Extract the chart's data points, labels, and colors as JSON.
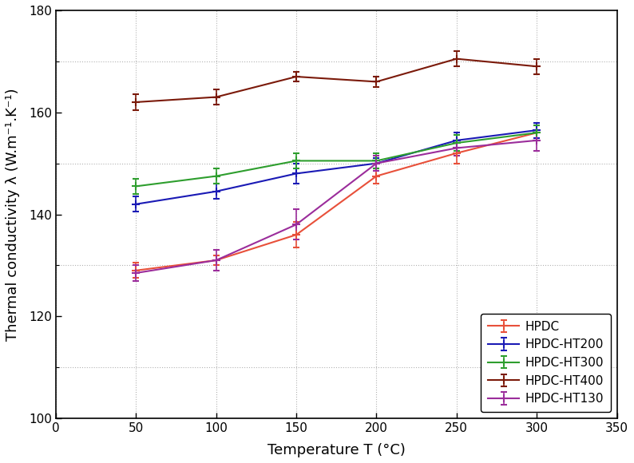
{
  "x": [
    50,
    100,
    150,
    200,
    250,
    300
  ],
  "series": {
    "HPDC": {
      "y": [
        129.0,
        131.0,
        136.0,
        147.5,
        152.0,
        156.0
      ],
      "yerr": [
        1.5,
        1.0,
        2.5,
        1.5,
        2.0,
        1.5
      ],
      "color": "#e8503a",
      "marker": "+"
    },
    "HPDC-HT200": {
      "y": [
        142.0,
        144.5,
        148.0,
        150.0,
        154.5,
        156.5
      ],
      "yerr": [
        1.5,
        1.5,
        2.0,
        1.0,
        1.5,
        1.5
      ],
      "color": "#1a1ab5",
      "marker": "+"
    },
    "HPDC-HT300": {
      "y": [
        145.5,
        147.5,
        150.5,
        150.5,
        154.0,
        156.0
      ],
      "yerr": [
        1.5,
        1.5,
        1.5,
        1.5,
        1.5,
        1.5
      ],
      "color": "#2e9e2e",
      "marker": "+"
    },
    "HPDC-HT400": {
      "y": [
        162.0,
        163.0,
        167.0,
        166.0,
        170.5,
        169.0
      ],
      "yerr": [
        1.5,
        1.5,
        1.0,
        1.0,
        1.5,
        1.5
      ],
      "color": "#7b1a0a",
      "marker": "+"
    },
    "HPDC-HT130": {
      "y": [
        128.5,
        131.0,
        138.0,
        150.0,
        153.0,
        154.5
      ],
      "yerr": [
        1.5,
        2.0,
        3.0,
        1.5,
        1.5,
        2.0
      ],
      "color": "#9b2d9b",
      "marker": "+"
    }
  },
  "xlabel": "Temperature T (°C)",
  "ylabel": "Thermal conductivity λ (W.m⁻¹.K⁻¹)",
  "xlim": [
    0,
    350
  ],
  "ylim": [
    100,
    180
  ],
  "xticks": [
    0,
    50,
    100,
    150,
    200,
    250,
    300,
    350
  ],
  "yticks_major": [
    100,
    120,
    140,
    160,
    180
  ],
  "yticks_minor": [
    100,
    110,
    120,
    130,
    140,
    150,
    160,
    170,
    180
  ],
  "grid": true,
  "legend_loc": "lower right",
  "figsize": [
    7.94,
    5.8
  ],
  "dpi": 100
}
